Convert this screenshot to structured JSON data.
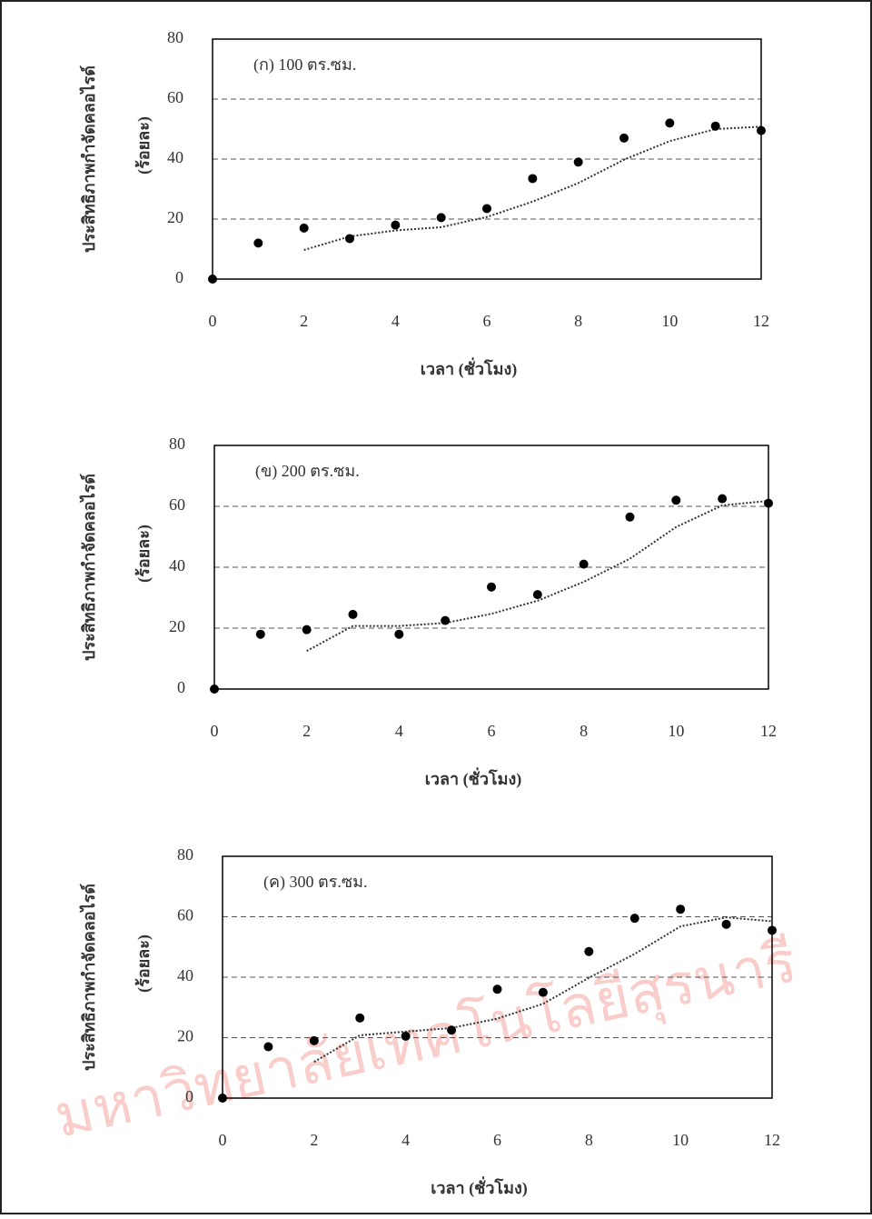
{
  "chart_data": [
    {
      "type": "scatter",
      "title": "(ก) 100 ตร.ซม.",
      "x_label": "เวลา (ชั่วโมง)",
      "y_label": [
        "ประสิทธิภาพกำจัดคลอไรด์",
        "(ร้อยละ)"
      ],
      "x": [
        0,
        1,
        2,
        3,
        4,
        5,
        6,
        7,
        8,
        9,
        10,
        11,
        12
      ],
      "series": [
        {
          "color": "#000000",
          "values": [
            0,
            12,
            17,
            13.5,
            18,
            20.5,
            23.5,
            33.5,
            39,
            47,
            52,
            51,
            49.5
          ]
        }
      ],
      "trend": {
        "color": "#333333",
        "values": [
          null,
          null,
          9.7,
          14.2,
          16.2,
          17.3,
          20.7,
          25.8,
          32,
          39.8,
          46,
          50,
          50.8
        ]
      },
      "xlim": [
        0,
        12
      ],
      "xticks": [
        0,
        2,
        4,
        6,
        8,
        10,
        12
      ],
      "ylim": [
        0,
        80
      ],
      "yticks": [
        0,
        20,
        40,
        60,
        80
      ],
      "grid": true
    },
    {
      "type": "scatter",
      "title": "(ข) 200 ตร.ซม.",
      "x_label": "เวลา (ชั่วโมง)",
      "y_label": [
        "ประสิทธิภาพกำจัดคลอไรด์",
        "(ร้อยละ)"
      ],
      "x": [
        0,
        1,
        2,
        3,
        4,
        5,
        6,
        7,
        8,
        9,
        10,
        11,
        12
      ],
      "series": [
        {
          "color": "#000000",
          "values": [
            0,
            18,
            19.5,
            24.5,
            18,
            22.5,
            33.5,
            31,
            41,
            56.5,
            62,
            62.5,
            61
          ]
        }
      ],
      "trend": {
        "color": "#333333",
        "values": [
          null,
          null,
          12.5,
          20.7,
          20.7,
          21.7,
          24.7,
          29,
          35.2,
          42.8,
          53.2,
          60.3,
          61.8
        ]
      },
      "xlim": [
        0,
        12
      ],
      "xticks": [
        0,
        2,
        4,
        6,
        8,
        10,
        12
      ],
      "ylim": [
        0,
        80
      ],
      "yticks": [
        0,
        20,
        40,
        60,
        80
      ],
      "grid": true
    },
    {
      "type": "scatter",
      "title": "(ค) 300 ตร.ซม.",
      "x_label": "เวลา (ชั่วโมง)",
      "y_label": [
        "ประสิทธิภาพกำจัดคลอไรด์",
        "(ร้อยละ)"
      ],
      "x": [
        0,
        1,
        2,
        3,
        4,
        5,
        6,
        7,
        8,
        9,
        10,
        11,
        12
      ],
      "series": [
        {
          "color": "#000000",
          "values": [
            0,
            17,
            19,
            26.5,
            20.5,
            22.5,
            36,
            35,
            48.5,
            59.5,
            62.5,
            57.5,
            55.5
          ]
        }
      ],
      "trend": {
        "color": "#333333",
        "values": [
          null,
          null,
          12,
          20.8,
          22,
          23.2,
          26.3,
          31.2,
          39.8,
          47.7,
          56.8,
          59.8,
          58.5
        ]
      },
      "xlim": [
        0,
        12
      ],
      "xticks": [
        0,
        2,
        4,
        6,
        8,
        10,
        12
      ],
      "ylim": [
        0,
        80
      ],
      "yticks": [
        0,
        20,
        40,
        60,
        80
      ],
      "grid": true
    }
  ],
  "watermark": "มหาวิทยาลัยเทคโนโลยีสุรนารี"
}
